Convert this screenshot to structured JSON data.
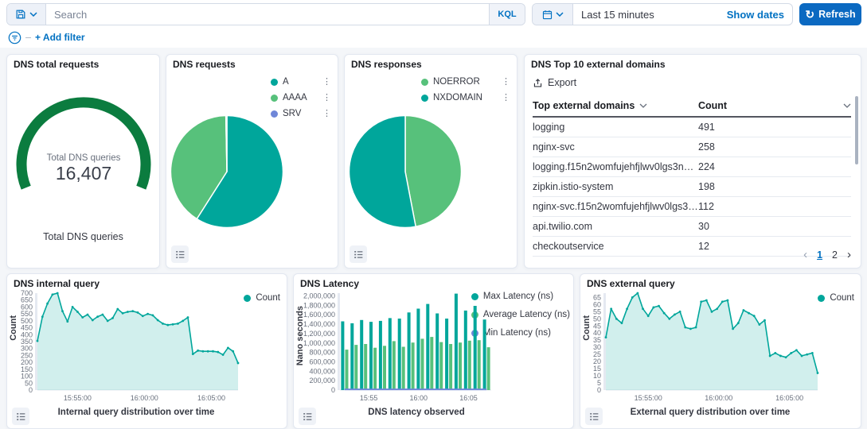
{
  "topbar": {
    "search_placeholder": "Search",
    "kql_label": "KQL",
    "time_value": "Last 15 minutes",
    "show_dates_label": "Show dates",
    "refresh_label": "Refresh"
  },
  "filter_bar": {
    "add_filter_label": "+ Add filter"
  },
  "icons": {
    "refresh": "↻",
    "ellipsis": "⋮",
    "chevron_left": "‹",
    "chevron_right": "›"
  },
  "colors": {
    "teal": "#00a69b",
    "green": "#57c17b",
    "purple": "#6f87d8",
    "gauge_green": "#0b7c3f",
    "primary_blue": "#0071c2",
    "text": "#343741",
    "subdued": "#69707d"
  },
  "panels": {
    "total_requests": {
      "title": "DNS total requests",
      "center_label": "Total DNS queries",
      "value": "16,407",
      "bottom_label": "Total DNS queries"
    },
    "requests": {
      "title": "DNS requests"
    },
    "responses": {
      "title": "DNS responses"
    },
    "top_domains": {
      "title": "DNS Top 10 external domains",
      "export_label": "Export",
      "columns": [
        "Top external domains",
        "Count"
      ],
      "rows": [
        [
          "logging",
          "491"
        ],
        [
          "nginx-svc",
          "258"
        ],
        [
          "logging.f15n2womfujehfjlwv0lgs3nog....",
          "224"
        ],
        [
          "zipkin.istio-system",
          "198"
        ],
        [
          "nginx-svc.f15n2womfujehfjlwv0lgs3no...",
          "112"
        ],
        [
          "api.twilio.com",
          "30"
        ],
        [
          "checkoutservice",
          "12"
        ]
      ],
      "pagination": {
        "pages": [
          "1",
          "2"
        ],
        "current": "1"
      }
    },
    "internal_query": {
      "title": "DNS internal query"
    },
    "latency": {
      "title": "DNS Latency"
    },
    "external_query": {
      "title": "DNS external query"
    }
  },
  "chart_data": {
    "gauge": {
      "type": "gauge",
      "title": "DNS total requests",
      "label": "Total DNS queries",
      "value": 16407,
      "display_value": "16,407",
      "color": "#0b7c3f"
    },
    "requests_pie": {
      "type": "pie",
      "title": "DNS requests",
      "slices": [
        {
          "label": "A",
          "color": "#00a69b",
          "pct": 59
        },
        {
          "label": "AAAA",
          "color": "#57c17b",
          "pct": 40.7
        },
        {
          "label": "SRV",
          "color": "#6f87d8",
          "pct": 0.3
        }
      ]
    },
    "responses_pie": {
      "type": "pie",
      "title": "DNS responses",
      "slices": [
        {
          "label": "NOERROR",
          "color": "#57c17b",
          "pct": 47
        },
        {
          "label": "NXDOMAIN",
          "color": "#00a69b",
          "pct": 53
        }
      ]
    },
    "internal_area": {
      "type": "area",
      "title": "Internal query distribution over time",
      "ylabel": "Count",
      "ylim": [
        0,
        700
      ],
      "ymax_tick": 700,
      "ytick_step": 50,
      "tick_format": "plain",
      "grid": false,
      "legend_position": "top-right",
      "xticks": [
        "15:55:00",
        "16:00:00",
        "16:05:00"
      ],
      "xtick_pos": [
        0.2,
        0.533,
        0.867
      ],
      "series": [
        {
          "name": "Count",
          "color": "#00a69b",
          "render": "area",
          "values": [
            355,
            530,
            625,
            690,
            700,
            570,
            495,
            600,
            565,
            525,
            545,
            505,
            530,
            545,
            500,
            520,
            585,
            555,
            565,
            570,
            560,
            535,
            550,
            540,
            505,
            480,
            470,
            475,
            480,
            500,
            525,
            260,
            285,
            280,
            280,
            280,
            275,
            255,
            305,
            280,
            195
          ]
        }
      ]
    },
    "latency_bars": {
      "type": "bar",
      "title": "DNS latency observed",
      "ylabel": "Nano seconds",
      "ylim": [
        0,
        2060000
      ],
      "ymax_tick": 2000000,
      "ytick_step": 200000,
      "tick_format": "comma",
      "grid": false,
      "legend_position": "top-right",
      "xticks": [
        "15:55",
        "16:00",
        "16:05"
      ],
      "xtick_pos": [
        0.19,
        0.52,
        0.85
      ],
      "series": [
        {
          "name": "Max Latency (ns)",
          "color": "#00a69b",
          "render": "bar",
          "values": [
            1460000,
            1420000,
            1490000,
            1450000,
            1470000,
            1530000,
            1520000,
            1650000,
            1730000,
            1830000,
            1630000,
            1520000,
            2050000,
            1690000,
            1790000,
            1500000
          ]
        },
        {
          "name": "Average Latency (ns)",
          "color": "#57c17b",
          "render": "bar",
          "values": [
            860000,
            960000,
            980000,
            900000,
            940000,
            1040000,
            920000,
            1010000,
            1090000,
            1130000,
            1020000,
            980000,
            1010000,
            1050000,
            1060000,
            910000
          ]
        },
        {
          "name": "Min Latency (ns)",
          "color": "#6f87d8",
          "render": "line",
          "values": [
            15000,
            15000,
            15000,
            15000,
            15000,
            15000,
            15000,
            15000,
            15000,
            15000,
            15000,
            15000,
            15000,
            15000,
            15000,
            15000
          ]
        }
      ]
    },
    "external_area": {
      "type": "area",
      "title": "External query distribution over time",
      "ylabel": "Count",
      "ylim": [
        0,
        68
      ],
      "ymax_tick": 65,
      "ytick_step": 5,
      "tick_format": "plain",
      "grid": false,
      "legend_position": "top-right",
      "xticks": [
        "15:55:00",
        "16:00:00",
        "16:05:00"
      ],
      "xtick_pos": [
        0.2,
        0.533,
        0.867
      ],
      "series": [
        {
          "name": "Count",
          "color": "#00a69b",
          "render": "area",
          "values": [
            37,
            57,
            50,
            47,
            57,
            65,
            68,
            57,
            52,
            58,
            59,
            54,
            50,
            53,
            55,
            44,
            43,
            44,
            62,
            63,
            55,
            57,
            62,
            63,
            43,
            47,
            56,
            54,
            52,
            46,
            49,
            24,
            26,
            24,
            23,
            26,
            28,
            24,
            25,
            26,
            12
          ]
        }
      ]
    }
  }
}
